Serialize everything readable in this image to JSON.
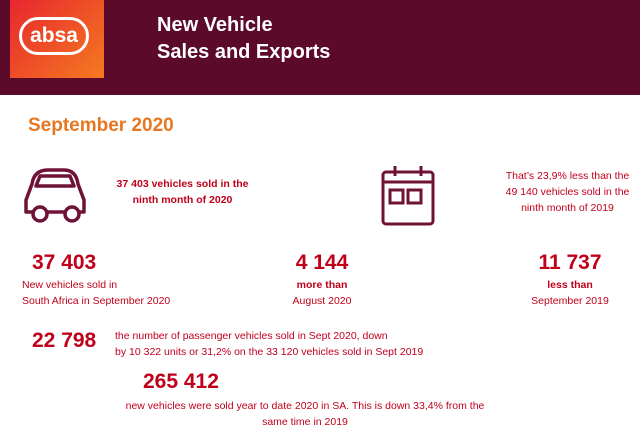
{
  "header": {
    "logo": "absa",
    "title_lines": [
      "New Vehicle",
      "Sales and Exports"
    ]
  },
  "period": "September 2020",
  "highlights": [
    {
      "lines": [
        "37 403 vehicles sold in the",
        "ninth month of 2020"
      ]
    },
    {
      "lines": [
        "That’s 23,9% less than the",
        "49 140 vehicles sold in the",
        "ninth month of 2019"
      ]
    }
  ],
  "stats": [
    {
      "figure": "37 403",
      "lines": [
        "New vehicles sold in",
        "South Africa in September 2020"
      ]
    },
    {
      "figure": "4 144",
      "lines": [
        "more than",
        "August 2020"
      ]
    },
    {
      "figure": "11 737",
      "lines": [
        "less than",
        "September 2019"
      ]
    },
    {
      "figure": "22 798",
      "lines": [
        "the number of passenger vehicles sold in Sept 2020, down",
        "by 10 322 units or 31,2% on the 33 120 vehicles sold in Sept 2019"
      ]
    },
    {
      "figure": "265 412",
      "lines": [
        "new vehicles were sold year to date 2020 in SA. This is down 33,4% from the",
        "same time in 2019"
      ]
    }
  ]
}
